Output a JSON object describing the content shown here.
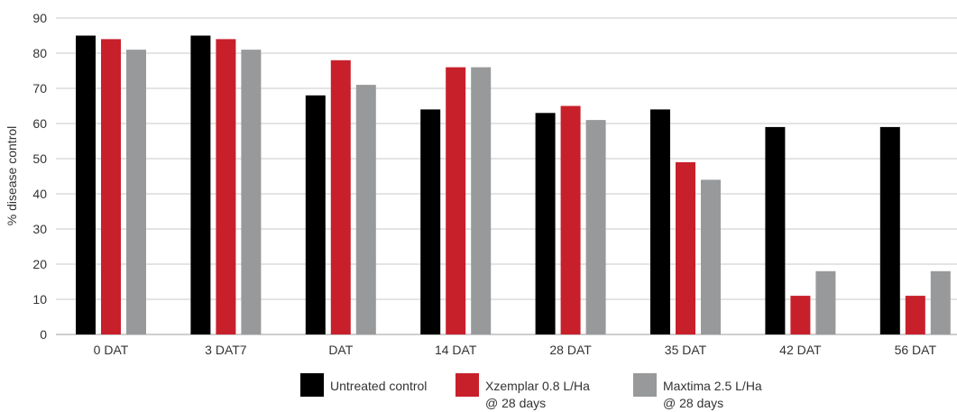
{
  "chart_data": {
    "type": "bar",
    "categories": [
      "0 DAT",
      "3 DAT7",
      "DAT",
      "14 DAT",
      "28 DAT",
      "35 DAT",
      "42 DAT",
      "56 DAT"
    ],
    "series": [
      {
        "name": "Untreated control",
        "color": "#000000",
        "values": [
          85,
          85,
          68,
          64,
          63,
          64,
          59,
          59
        ]
      },
      {
        "name": "Xzemplar 0.8 L/Ha @ 28 days",
        "name_lines": [
          "Xzemplar 0.8 L/Ha",
          "@ 28 days"
        ],
        "color": "#c8202b",
        "values": [
          84,
          84,
          78,
          76,
          65,
          49,
          11,
          11
        ]
      },
      {
        "name": "Maxtima 2.5 L/Ha @ 28 days",
        "name_lines": [
          "Maxtima 2.5 L/Ha",
          "@ 28 days"
        ],
        "color": "#98999b",
        "values": [
          81,
          81,
          71,
          76,
          61,
          44,
          18,
          18
        ]
      }
    ],
    "ylabel": "% disease control",
    "ylim": [
      0,
      90
    ],
    "yticks": [
      0,
      10,
      20,
      30,
      40,
      50,
      60,
      70,
      80,
      90
    ],
    "grid": true,
    "legend_position": "bottom"
  }
}
